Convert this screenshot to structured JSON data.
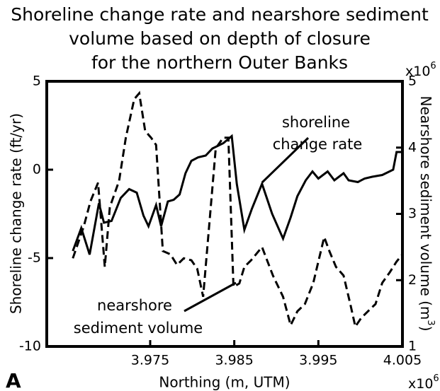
{
  "chart_data": {
    "type": "line",
    "title": [
      "Shoreline change rate and nearshore sediment",
      "volume based on depth of closure",
      "for the northern Outer Banks"
    ],
    "panel": "A",
    "xlabel": "Northing (m, UTM)",
    "x_multiplier": {
      "base": "x10",
      "exp": "6"
    },
    "ylabel": "Shoreline change rate (ft/yr)",
    "y2label": {
      "text": "Nearshore sediment volume (m",
      "exp": "3",
      "close": ")"
    },
    "y2_multiplier": {
      "base": "x10",
      "exp": "6"
    },
    "xlim": [
      3.9627,
      4.005
    ],
    "xticks": [
      3.975,
      3.985,
      3.995,
      4.005
    ],
    "ylim": [
      -10,
      5
    ],
    "yticks": [
      -10,
      -5,
      0,
      5
    ],
    "y2lim": [
      1,
      5
    ],
    "y2ticks": [
      1,
      2,
      3,
      4,
      5
    ],
    "series": [
      {
        "color": "#000000",
        "style": "solid",
        "x": [
          3.9658,
          3.9668,
          3.9678,
          3.9689,
          3.9695,
          3.9704,
          3.9715,
          3.9725,
          3.9734,
          3.9742,
          3.9748,
          3.9757,
          3.9763,
          3.9771,
          3.9778,
          3.9785,
          3.9792,
          3.9799,
          3.9807,
          3.9816,
          3.9824,
          3.9837,
          3.9847,
          3.9853,
          3.9862,
          3.9871,
          3.9883,
          3.9895,
          3.9908,
          3.9917,
          3.9925,
          3.9935,
          3.9943,
          3.995,
          3.9961,
          3.9969,
          3.998,
          3.9986,
          3.9997,
          4.0005,
          4.0014,
          4.0026,
          4.0039,
          4.0043,
          4.005
        ],
        "values": [
          -4.6,
          -3.3,
          -4.8,
          -1.9,
          -3.0,
          -2.9,
          -1.6,
          -1.1,
          -1.3,
          -2.6,
          -3.2,
          -2.0,
          -3.2,
          -1.8,
          -1.7,
          -1.4,
          -0.2,
          0.5,
          0.7,
          0.8,
          1.2,
          1.5,
          1.9,
          -0.8,
          -3.4,
          -2.2,
          -0.8,
          -2.5,
          -3.9,
          -2.7,
          -1.5,
          -0.6,
          -0.1,
          -0.5,
          -0.1,
          -0.6,
          -0.2,
          -0.6,
          -0.7,
          -0.5,
          -0.4,
          -0.3,
          0.0,
          1.0,
          1.0
        ]
      },
      {
        "color": "#000000",
        "style": "dashed",
        "axis": "y2",
        "x": [
          3.9658,
          3.9671,
          3.9679,
          3.9688,
          3.9696,
          3.9702,
          3.9713,
          3.9721,
          3.9731,
          3.9737,
          3.9744,
          3.9751,
          3.9757,
          3.9765,
          3.9774,
          3.9782,
          3.979,
          3.9799,
          3.9806,
          3.9813,
          3.9828,
          3.9837,
          3.9843,
          3.9849,
          3.9856,
          3.9862,
          3.987,
          3.9883,
          3.9896,
          3.9908,
          3.9917,
          3.9925,
          3.9934,
          3.9944,
          3.995,
          3.9957,
          3.9963,
          3.9971,
          3.998,
          3.9988,
          3.9994,
          4.0001,
          4.0009,
          4.0018,
          4.0026,
          4.0035,
          4.0043,
          4.005
        ],
        "values": [
          2.33,
          2.81,
          3.19,
          3.47,
          2.2,
          3.1,
          3.5,
          4.15,
          4.73,
          4.82,
          4.25,
          4.15,
          4.04,
          2.44,
          2.39,
          2.23,
          2.33,
          2.3,
          2.17,
          1.75,
          3.99,
          4.15,
          4.15,
          1.9,
          1.95,
          2.2,
          2.3,
          2.5,
          2.07,
          1.75,
          1.32,
          1.53,
          1.64,
          1.96,
          2.28,
          2.65,
          2.44,
          2.2,
          2.07,
          1.64,
          1.3,
          1.43,
          1.53,
          1.64,
          1.96,
          2.12,
          2.28,
          2.39
        ]
      }
    ],
    "annotations": [
      {
        "lines": [
          "shoreline",
          "change rate"
        ]
      },
      {
        "lines": [
          "nearshore",
          "sediment volume"
        ]
      }
    ]
  }
}
